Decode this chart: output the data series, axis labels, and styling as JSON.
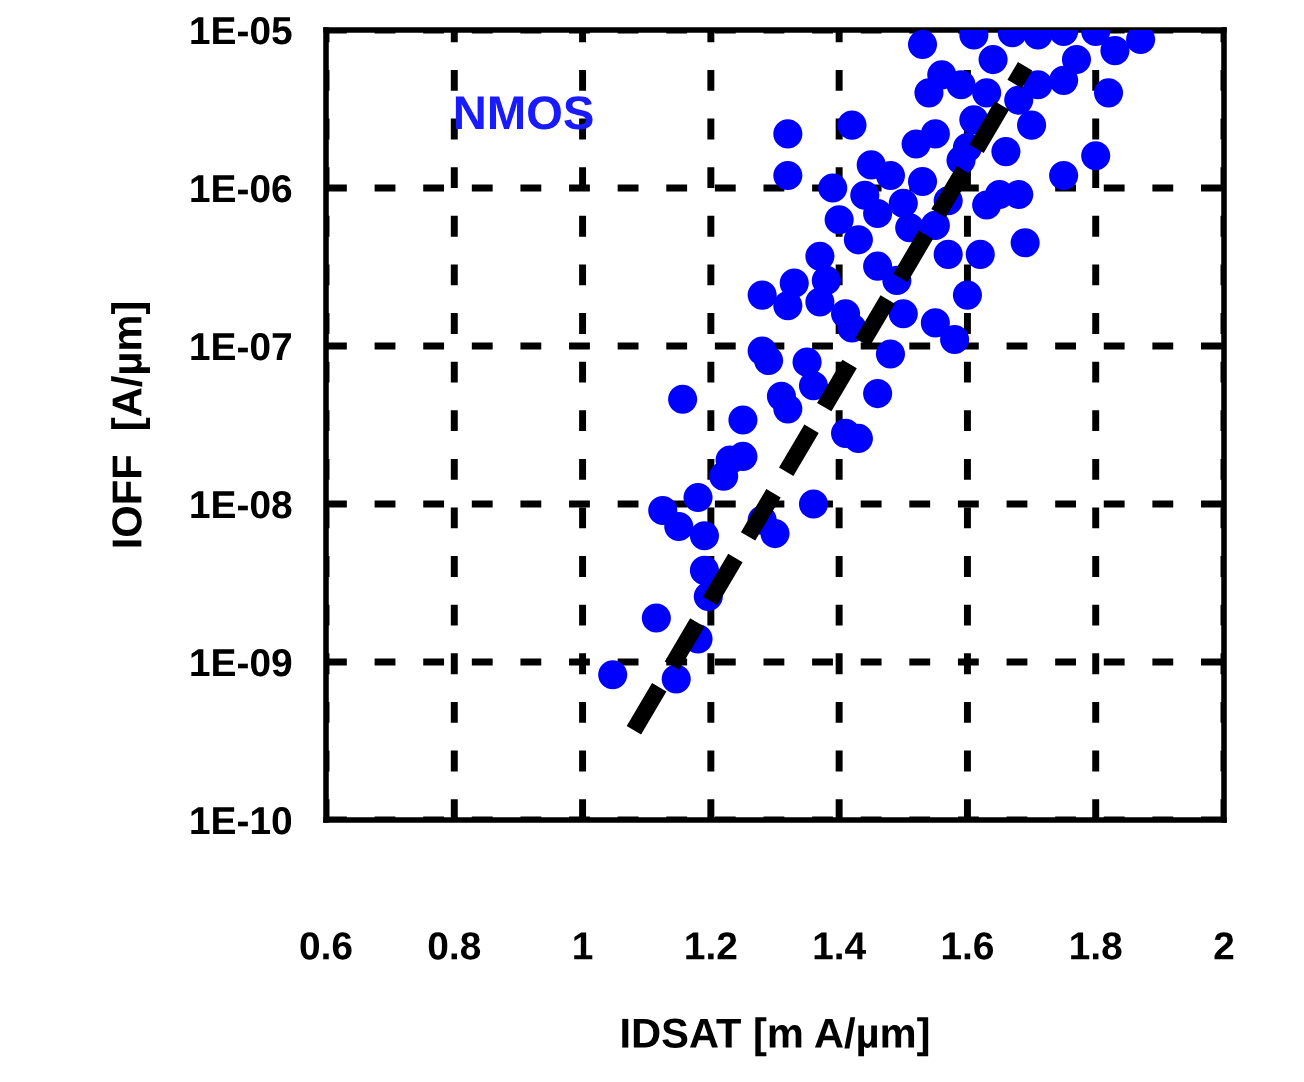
{
  "chart_data": {
    "type": "scatter",
    "xlabel": "IDSAT [m A/µm]",
    "ylabel": "IOFF  [A/µm]",
    "log": "y",
    "grid": true,
    "xlim": [
      0.6,
      2
    ],
    "xticks": [
      0.6,
      0.8,
      1,
      1.2,
      1.4,
      1.6,
      1.8,
      2
    ],
    "ylim": [
      1e-10,
      1e-05
    ],
    "yticks": [
      {
        "value": 1e-10,
        "label": "1E-10"
      },
      {
        "value": 1e-09,
        "label": "1E-09"
      },
      {
        "value": 1e-08,
        "label": "1E-08"
      },
      {
        "value": 1e-07,
        "label": "1E-07"
      },
      {
        "value": 1e-06,
        "label": "1E-06"
      },
      {
        "value": 1e-05,
        "label": "1E-05"
      }
    ],
    "annotations": [
      "NMOS"
    ],
    "series": [
      {
        "color": "#0000ff",
        "marker": "circle",
        "x": [
          1.047,
          1.146,
          1.115,
          1.18,
          1.196,
          1.19,
          1.19,
          1.125,
          1.15,
          1.18,
          1.22,
          1.25,
          1.25,
          1.28,
          1.3,
          1.36,
          1.31,
          1.29,
          1.28,
          1.36,
          1.41,
          1.46,
          1.43,
          1.48,
          1.156,
          1.32,
          1.32,
          1.42,
          1.39,
          1.37,
          1.4,
          1.28,
          1.33,
          1.32,
          1.37,
          1.41,
          1.46,
          1.49,
          1.5,
          1.55,
          1.58,
          1.6,
          1.46,
          1.45,
          1.52,
          1.55,
          1.59,
          1.57,
          1.55,
          1.62,
          1.57,
          1.65,
          1.68,
          1.69,
          1.63,
          1.66,
          1.7,
          1.75,
          1.8,
          1.54,
          1.56,
          1.53,
          1.61,
          1.67,
          1.71,
          1.75,
          1.8,
          1.83,
          1.87,
          1.77,
          1.75,
          1.82,
          1.71,
          1.64,
          1.63,
          1.59,
          1.61,
          1.68,
          1.43,
          1.38,
          1.51,
          1.42,
          1.35,
          1.32,
          1.23,
          1.48,
          1.5,
          1.53,
          1.44,
          1.6
        ],
        "values": [
          8.3e-10,
          7.8e-10,
          1.9e-09,
          1.4e-09,
          2.6e-09,
          3.8e-09,
          6.3e-09,
          9.1e-09,
          7.2e-09,
          1.1e-08,
          1.5e-08,
          2e-08,
          3.4e-08,
          7.9e-09,
          6.5e-09,
          1e-08,
          4.8e-08,
          8.1e-08,
          9.3e-08,
          5.6e-08,
          2.8e-08,
          5e-08,
          2.6e-08,
          8.9e-08,
          4.6e-08,
          2.2e-06,
          1.2e-06,
          2.5e-06,
          1e-06,
          3.7e-07,
          6.3e-07,
          2.1e-07,
          2.5e-07,
          1.8e-07,
          1.9e-07,
          1.6e-07,
          3.2e-07,
          2.6e-07,
          1.6e-07,
          1.4e-07,
          1.1e-07,
          2.1e-07,
          6.9e-07,
          1.4e-06,
          1.9e-06,
          2.2e-06,
          1.5e-06,
          8.3e-07,
          5.8e-07,
          3.8e-07,
          3.8e-07,
          9.1e-07,
          9.1e-07,
          4.5e-07,
          7.8e-07,
          1.7e-06,
          2.5e-06,
          1.2e-06,
          1.6e-06,
          4e-06,
          5.2e-06,
          8.1e-06,
          9.3e-06,
          9.6e-06,
          9.3e-06,
          9.8e-06,
          9.8e-06,
          7.4e-06,
          8.7e-06,
          6.5e-06,
          4.8e-06,
          4e-06,
          4.5e-06,
          6.5e-06,
          4e-06,
          4.5e-06,
          2.7e-06,
          3.6e-06,
          4.7e-07,
          2.6e-07,
          5.6e-07,
          1.3e-07,
          7.9e-08,
          4e-08,
          1.9e-08,
          1.2e-06,
          8e-07,
          1.1e-06,
          9e-07,
          1.8e-06
        ]
      },
      {
        "type": "line",
        "color": "#000000",
        "line_style": "dashed",
        "x": [
          1.08,
          1.69
        ],
        "values": [
          3.7e-10,
          5.9e-06
        ]
      }
    ]
  }
}
